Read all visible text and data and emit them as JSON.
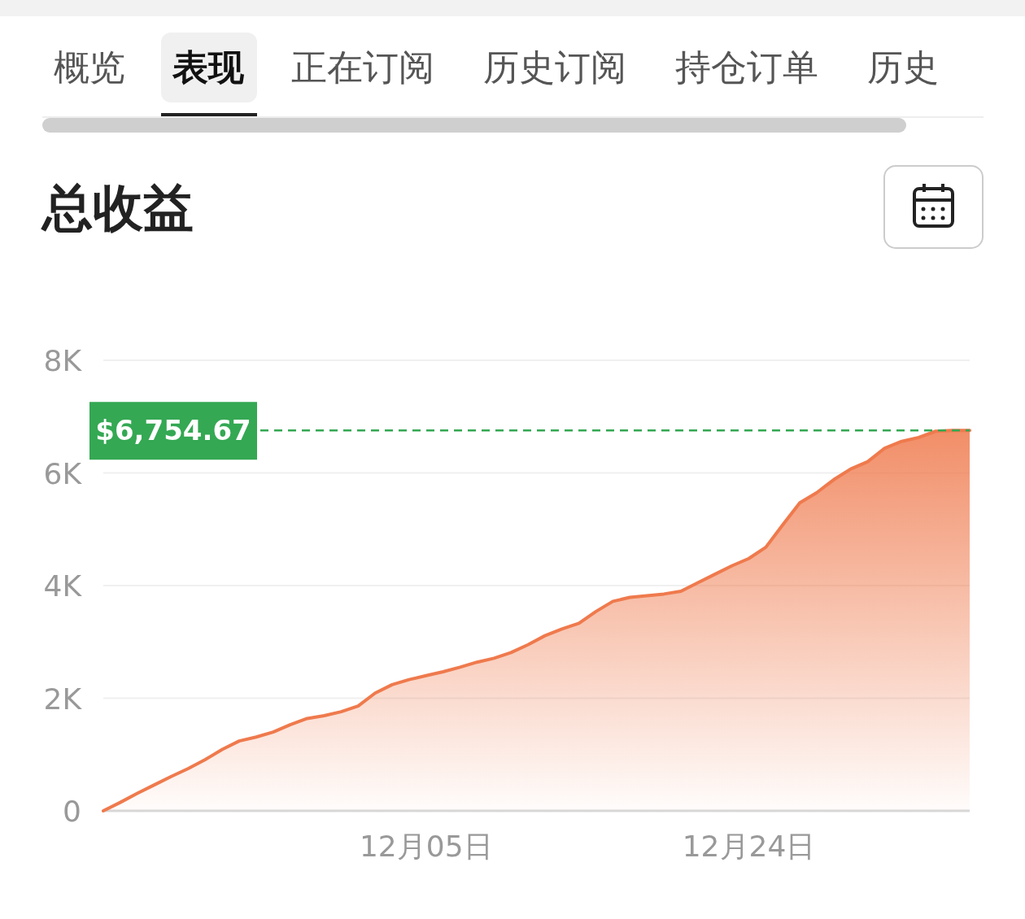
{
  "chart_data": {
    "type": "area",
    "title": "总收益",
    "annotations": [
      "概览",
      "表现",
      "正在订阅",
      "历史订阅",
      "持仓订单",
      "历史"
    ],
    "categories": [
      null,
      null,
      null,
      null,
      null,
      null,
      null,
      null,
      null,
      null,
      null,
      null,
      null,
      null,
      null,
      null,
      null,
      null,
      null,
      "12月05日",
      null,
      null,
      null,
      null,
      null,
      null,
      null,
      null,
      null,
      null,
      null,
      null,
      null,
      null,
      null,
      null,
      null,
      null,
      "12月24日",
      null,
      null,
      null,
      null,
      null,
      null,
      null,
      null,
      null,
      null,
      null,
      null,
      null
    ],
    "series": [
      {
        "color": "#ef7a4d",
        "values": [
          0,
          150,
          310,
          460,
          610,
          750,
          910,
          1090,
          1240,
          1310,
          1400,
          1530,
          1640,
          1690,
          1760,
          1860,
          2090,
          2240,
          2330,
          2400,
          2470,
          2550,
          2640,
          2710,
          2810,
          2950,
          3110,
          3230,
          3330,
          3540,
          3720,
          3790,
          3820,
          3850,
          3900,
          4050,
          4200,
          4350,
          4480,
          4680,
          5080,
          5470,
          5650,
          5880,
          6070,
          6200,
          6440,
          6560,
          6630,
          6740,
          6754.67,
          6754.67
        ]
      }
    ],
    "ylim": [
      0,
      8000
    ],
    "yticks": [
      0,
      {
        "value": 2000,
        "label": "2K"
      },
      {
        "value": 4000,
        "label": "4K"
      },
      {
        "value": 6000,
        "label": "6K"
      },
      {
        "value": 8000,
        "label": "8K"
      }
    ],
    "grid": "y",
    "ref_lines": [
      {
        "axis": "y",
        "value": 6754.67,
        "label": "$6,754.67",
        "color": "#34a853",
        "line_style": "dashed"
      }
    ]
  }
}
